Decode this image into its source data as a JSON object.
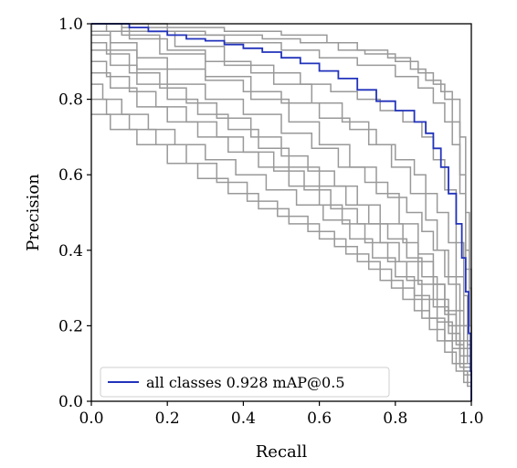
{
  "chart_data": {
    "type": "line",
    "title": "",
    "xlabel": "Recall",
    "ylabel": "Precision",
    "xlim": [
      0.0,
      1.0
    ],
    "ylim": [
      0.0,
      1.0
    ],
    "xticks": [
      "0.0",
      "0.2",
      "0.4",
      "0.6",
      "0.8",
      "1.0"
    ],
    "yticks": [
      "0.0",
      "0.2",
      "0.4",
      "0.6",
      "0.8",
      "1.0"
    ],
    "grid": false,
    "legend_position": "bottom-left",
    "legend_entries": [
      "all  classes  0.928  mAP@0.5"
    ],
    "colors": {
      "class_curves": "#999999",
      "all_classes": "#2233bb"
    },
    "series": [
      {
        "role": "class",
        "points": [
          [
            0.0,
            1.0
          ],
          [
            0.05,
            1.0
          ],
          [
            0.15,
            0.98
          ],
          [
            0.3,
            0.97
          ],
          [
            0.45,
            0.96
          ],
          [
            0.55,
            0.95
          ],
          [
            0.65,
            0.93
          ],
          [
            0.72,
            0.92
          ],
          [
            0.8,
            0.9
          ],
          [
            0.86,
            0.87
          ],
          [
            0.9,
            0.84
          ],
          [
            0.93,
            0.8
          ],
          [
            0.95,
            0.74
          ],
          [
            0.97,
            0.6
          ],
          [
            0.985,
            0.4
          ],
          [
            0.995,
            0.2
          ],
          [
            1.0,
            0.08
          ]
        ]
      },
      {
        "role": "class",
        "points": [
          [
            0.0,
            1.0
          ],
          [
            0.1,
            1.0
          ],
          [
            0.2,
            0.99
          ],
          [
            0.35,
            0.98
          ],
          [
            0.5,
            0.97
          ],
          [
            0.62,
            0.95
          ],
          [
            0.7,
            0.93
          ],
          [
            0.78,
            0.91
          ],
          [
            0.84,
            0.88
          ],
          [
            0.88,
            0.85
          ],
          [
            0.92,
            0.82
          ],
          [
            0.95,
            0.8
          ],
          [
            0.97,
            0.7
          ],
          [
            0.985,
            0.5
          ],
          [
            0.995,
            0.3
          ],
          [
            1.0,
            0.1
          ]
        ]
      },
      {
        "role": "class",
        "points": [
          [
            0.0,
            1.0
          ],
          [
            0.08,
            0.99
          ],
          [
            0.2,
            0.97
          ],
          [
            0.35,
            0.95
          ],
          [
            0.5,
            0.93
          ],
          [
            0.6,
            0.91
          ],
          [
            0.7,
            0.89
          ],
          [
            0.8,
            0.86
          ],
          [
            0.86,
            0.83
          ],
          [
            0.9,
            0.79
          ],
          [
            0.93,
            0.74
          ],
          [
            0.95,
            0.68
          ],
          [
            0.97,
            0.55
          ],
          [
            0.985,
            0.35
          ],
          [
            1.0,
            0.05
          ]
        ]
      },
      {
        "role": "class",
        "points": [
          [
            0.0,
            1.0
          ],
          [
            0.04,
            0.98
          ],
          [
            0.1,
            0.96
          ],
          [
            0.2,
            0.93
          ],
          [
            0.3,
            0.9
          ],
          [
            0.42,
            0.87
          ],
          [
            0.55,
            0.84
          ],
          [
            0.63,
            0.82
          ],
          [
            0.7,
            0.8
          ],
          [
            0.76,
            0.77
          ],
          [
            0.82,
            0.74
          ],
          [
            0.87,
            0.7
          ],
          [
            0.9,
            0.64
          ],
          [
            0.93,
            0.56
          ],
          [
            0.96,
            0.42
          ],
          [
            0.98,
            0.28
          ],
          [
            0.99,
            0.15
          ],
          [
            1.0,
            0.03
          ]
        ]
      },
      {
        "role": "class",
        "points": [
          [
            0.0,
            0.98
          ],
          [
            0.05,
            0.95
          ],
          [
            0.12,
            0.91
          ],
          [
            0.2,
            0.88
          ],
          [
            0.3,
            0.85
          ],
          [
            0.4,
            0.82
          ],
          [
            0.5,
            0.79
          ],
          [
            0.6,
            0.75
          ],
          [
            0.68,
            0.72
          ],
          [
            0.75,
            0.68
          ],
          [
            0.8,
            0.64
          ],
          [
            0.85,
            0.6
          ],
          [
            0.88,
            0.55
          ],
          [
            0.91,
            0.5
          ],
          [
            0.94,
            0.42
          ],
          [
            0.96,
            0.33
          ],
          [
            0.98,
            0.2
          ],
          [
            1.0,
            0.04
          ]
        ]
      },
      {
        "role": "class",
        "points": [
          [
            0.0,
            0.97
          ],
          [
            0.05,
            0.93
          ],
          [
            0.12,
            0.88
          ],
          [
            0.2,
            0.84
          ],
          [
            0.3,
            0.8
          ],
          [
            0.4,
            0.76
          ],
          [
            0.5,
            0.71
          ],
          [
            0.58,
            0.67
          ],
          [
            0.65,
            0.62
          ],
          [
            0.72,
            0.58
          ],
          [
            0.78,
            0.54
          ],
          [
            0.83,
            0.5
          ],
          [
            0.87,
            0.45
          ],
          [
            0.9,
            0.4
          ],
          [
            0.93,
            0.33
          ],
          [
            0.96,
            0.24
          ],
          [
            0.98,
            0.14
          ],
          [
            1.0,
            0.03
          ]
        ]
      },
      {
        "role": "class",
        "points": [
          [
            0.0,
            0.95
          ],
          [
            0.04,
            0.92
          ],
          [
            0.1,
            0.87
          ],
          [
            0.18,
            0.83
          ],
          [
            0.25,
            0.79
          ],
          [
            0.33,
            0.75
          ],
          [
            0.42,
            0.7
          ],
          [
            0.5,
            0.65
          ],
          [
            0.57,
            0.61
          ],
          [
            0.64,
            0.57
          ],
          [
            0.7,
            0.52
          ],
          [
            0.76,
            0.47
          ],
          [
            0.82,
            0.42
          ],
          [
            0.86,
            0.37
          ],
          [
            0.9,
            0.31
          ],
          [
            0.93,
            0.24
          ],
          [
            0.96,
            0.16
          ],
          [
            1.0,
            0.02
          ]
        ]
      },
      {
        "role": "class",
        "points": [
          [
            0.0,
            0.93
          ],
          [
            0.05,
            0.89
          ],
          [
            0.12,
            0.84
          ],
          [
            0.2,
            0.8
          ],
          [
            0.28,
            0.76
          ],
          [
            0.36,
            0.72
          ],
          [
            0.44,
            0.67
          ],
          [
            0.52,
            0.62
          ],
          [
            0.6,
            0.57
          ],
          [
            0.67,
            0.52
          ],
          [
            0.73,
            0.47
          ],
          [
            0.78,
            0.43
          ],
          [
            0.83,
            0.38
          ],
          [
            0.87,
            0.33
          ],
          [
            0.91,
            0.27
          ],
          [
            0.94,
            0.2
          ],
          [
            0.97,
            0.12
          ],
          [
            1.0,
            0.02
          ]
        ]
      },
      {
        "role": "class",
        "points": [
          [
            0.0,
            0.9
          ],
          [
            0.04,
            0.86
          ],
          [
            0.1,
            0.82
          ],
          [
            0.17,
            0.78
          ],
          [
            0.25,
            0.74
          ],
          [
            0.33,
            0.7
          ],
          [
            0.4,
            0.66
          ],
          [
            0.48,
            0.61
          ],
          [
            0.56,
            0.56
          ],
          [
            0.63,
            0.51
          ],
          [
            0.7,
            0.47
          ],
          [
            0.76,
            0.42
          ],
          [
            0.81,
            0.37
          ],
          [
            0.86,
            0.31
          ],
          [
            0.9,
            0.25
          ],
          [
            0.94,
            0.18
          ],
          [
            0.97,
            0.1
          ],
          [
            1.0,
            0.02
          ]
        ]
      },
      {
        "role": "class",
        "points": [
          [
            0.0,
            0.87
          ],
          [
            0.05,
            0.83
          ],
          [
            0.12,
            0.78
          ],
          [
            0.2,
            0.74
          ],
          [
            0.28,
            0.7
          ],
          [
            0.36,
            0.66
          ],
          [
            0.44,
            0.62
          ],
          [
            0.52,
            0.57
          ],
          [
            0.6,
            0.52
          ],
          [
            0.66,
            0.47
          ],
          [
            0.72,
            0.42
          ],
          [
            0.78,
            0.37
          ],
          [
            0.83,
            0.32
          ],
          [
            0.87,
            0.27
          ],
          [
            0.91,
            0.21
          ],
          [
            0.95,
            0.14
          ],
          [
            0.98,
            0.07
          ],
          [
            1.0,
            0.02
          ]
        ]
      },
      {
        "role": "class",
        "points": [
          [
            0.0,
            0.84
          ],
          [
            0.03,
            0.8
          ],
          [
            0.08,
            0.76
          ],
          [
            0.15,
            0.72
          ],
          [
            0.22,
            0.68
          ],
          [
            0.3,
            0.64
          ],
          [
            0.38,
            0.6
          ],
          [
            0.46,
            0.56
          ],
          [
            0.54,
            0.52
          ],
          [
            0.61,
            0.48
          ],
          [
            0.68,
            0.43
          ],
          [
            0.74,
            0.38
          ],
          [
            0.8,
            0.33
          ],
          [
            0.85,
            0.28
          ],
          [
            0.89,
            0.22
          ],
          [
            0.93,
            0.16
          ],
          [
            0.97,
            0.09
          ],
          [
            1.0,
            0.02
          ]
        ]
      },
      {
        "role": "class",
        "points": [
          [
            0.0,
            0.8
          ],
          [
            0.04,
            0.76
          ],
          [
            0.1,
            0.72
          ],
          [
            0.17,
            0.68
          ],
          [
            0.25,
            0.63
          ],
          [
            0.33,
            0.58
          ],
          [
            0.41,
            0.53
          ],
          [
            0.49,
            0.49
          ],
          [
            0.57,
            0.45
          ],
          [
            0.64,
            0.41
          ],
          [
            0.7,
            0.37
          ],
          [
            0.76,
            0.32
          ],
          [
            0.82,
            0.27
          ],
          [
            0.87,
            0.22
          ],
          [
            0.91,
            0.16
          ],
          [
            0.95,
            0.1
          ],
          [
            0.98,
            0.05
          ],
          [
            1.0,
            0.02
          ]
        ]
      },
      {
        "role": "class",
        "points": [
          [
            0.0,
            0.76
          ],
          [
            0.05,
            0.72
          ],
          [
            0.12,
            0.68
          ],
          [
            0.2,
            0.63
          ],
          [
            0.28,
            0.59
          ],
          [
            0.36,
            0.55
          ],
          [
            0.44,
            0.51
          ],
          [
            0.52,
            0.47
          ],
          [
            0.6,
            0.43
          ],
          [
            0.67,
            0.39
          ],
          [
            0.73,
            0.35
          ],
          [
            0.79,
            0.3
          ],
          [
            0.85,
            0.24
          ],
          [
            0.89,
            0.19
          ],
          [
            0.93,
            0.13
          ],
          [
            0.96,
            0.08
          ],
          [
            0.99,
            0.04
          ],
          [
            1.0,
            0.02
          ]
        ]
      },
      {
        "role": "class",
        "points": [
          [
            0.0,
            1.0
          ],
          [
            0.1,
            0.98
          ],
          [
            0.22,
            0.94
          ],
          [
            0.35,
            0.89
          ],
          [
            0.48,
            0.84
          ],
          [
            0.58,
            0.79
          ],
          [
            0.66,
            0.74
          ],
          [
            0.73,
            0.68
          ],
          [
            0.79,
            0.62
          ],
          [
            0.84,
            0.55
          ],
          [
            0.88,
            0.48
          ],
          [
            0.91,
            0.4
          ],
          [
            0.94,
            0.31
          ],
          [
            0.97,
            0.2
          ],
          [
            0.99,
            0.1
          ],
          [
            1.0,
            0.03
          ]
        ]
      },
      {
        "role": "class",
        "points": [
          [
            0.0,
            1.0
          ],
          [
            0.08,
            0.97
          ],
          [
            0.18,
            0.92
          ],
          [
            0.3,
            0.86
          ],
          [
            0.42,
            0.8
          ],
          [
            0.52,
            0.74
          ],
          [
            0.6,
            0.68
          ],
          [
            0.68,
            0.62
          ],
          [
            0.75,
            0.55
          ],
          [
            0.81,
            0.47
          ],
          [
            0.86,
            0.39
          ],
          [
            0.9,
            0.31
          ],
          [
            0.93,
            0.23
          ],
          [
            0.96,
            0.15
          ],
          [
            0.98,
            0.08
          ],
          [
            1.0,
            0.03
          ]
        ]
      },
      {
        "role": "all",
        "name": "all  classes  0.928  mAP@0.5",
        "points": [
          [
            0.0,
            1.0
          ],
          [
            0.05,
            1.0
          ],
          [
            0.1,
            0.99
          ],
          [
            0.15,
            0.98
          ],
          [
            0.2,
            0.97
          ],
          [
            0.25,
            0.96
          ],
          [
            0.3,
            0.955
          ],
          [
            0.35,
            0.945
          ],
          [
            0.4,
            0.935
          ],
          [
            0.45,
            0.925
          ],
          [
            0.5,
            0.91
          ],
          [
            0.55,
            0.895
          ],
          [
            0.6,
            0.875
          ],
          [
            0.65,
            0.855
          ],
          [
            0.7,
            0.825
          ],
          [
            0.75,
            0.795
          ],
          [
            0.8,
            0.77
          ],
          [
            0.85,
            0.74
          ],
          [
            0.88,
            0.71
          ],
          [
            0.9,
            0.67
          ],
          [
            0.92,
            0.62
          ],
          [
            0.94,
            0.55
          ],
          [
            0.96,
            0.47
          ],
          [
            0.975,
            0.38
          ],
          [
            0.985,
            0.29
          ],
          [
            0.993,
            0.18
          ],
          [
            0.998,
            0.08
          ],
          [
            1.0,
            0.03
          ]
        ]
      }
    ]
  }
}
